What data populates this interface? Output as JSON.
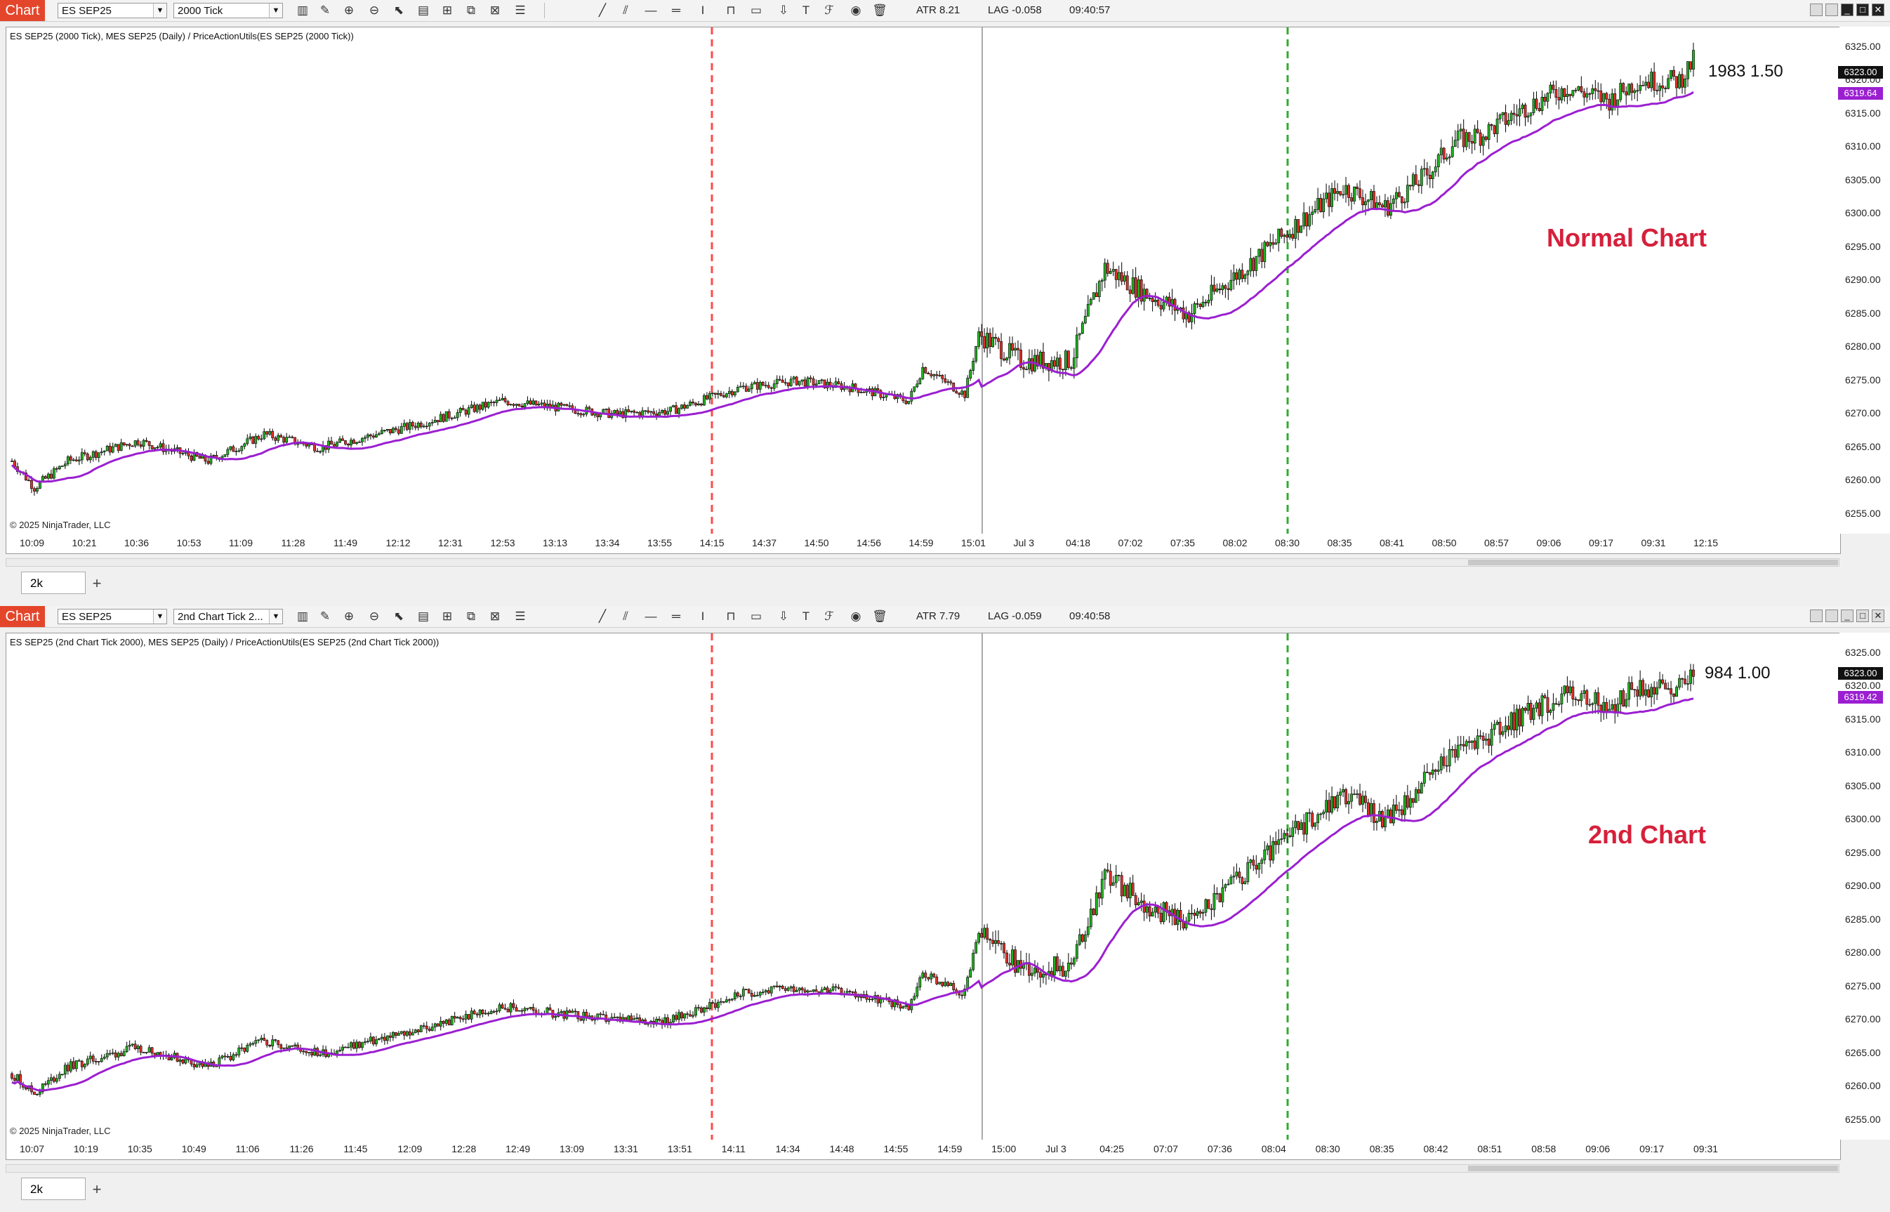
{
  "panels": [
    {
      "chart_label": "Chart",
      "instrument": "ES SEP25",
      "interval": "2000 Tick",
      "atr": "ATR 8.21",
      "lag": "LAG -0.058",
      "clock": "09:40:57",
      "header": "ES SEP25 (2000 Tick), MES SEP25 (Daily) / PriceActionUtils(ES SEP25 (2000 Tick))",
      "copyright": "© 2025 NinjaTrader, LLC",
      "big_label": "Normal Chart",
      "counter": "1983  1.50",
      "last_price": "6323.00",
      "ma_price": "6319.64",
      "time_ticks": [
        "10:09",
        "10:21",
        "10:36",
        "10:53",
        "11:09",
        "11:28",
        "11:49",
        "12:12",
        "12:31",
        "12:53",
        "13:13",
        "13:34",
        "13:55",
        "14:15",
        "14:37",
        "14:50",
        "14:56",
        "14:59",
        "15:01",
        "Jul 3",
        "04:18",
        "07:02",
        "07:35",
        "08:02",
        "08:30",
        "08:35",
        "08:41",
        "08:50",
        "08:57",
        "09:06",
        "09:17",
        "09:31",
        "12:15"
      ],
      "tab": "2k"
    },
    {
      "chart_label": "Chart",
      "instrument": "ES SEP25",
      "interval": "2nd Chart Tick 2...",
      "atr": "ATR 7.79",
      "lag": "LAG -0.059",
      "clock": "09:40:58",
      "header": "ES SEP25 (2nd Chart Tick 2000), MES SEP25 (Daily) / PriceActionUtils(ES SEP25 (2nd Chart Tick 2000))",
      "copyright": "© 2025 NinjaTrader, LLC",
      "big_label": "2nd Chart",
      "counter": "984  1.00",
      "last_price": "6323.00",
      "ma_price": "6319.42",
      "time_ticks": [
        "10:07",
        "10:19",
        "10:35",
        "10:49",
        "11:06",
        "11:26",
        "11:45",
        "12:09",
        "12:28",
        "12:49",
        "13:09",
        "13:31",
        "13:51",
        "14:11",
        "14:34",
        "14:48",
        "14:55",
        "14:59",
        "15:00",
        "Jul 3",
        "04:25",
        "07:07",
        "07:36",
        "08:04",
        "08:30",
        "08:35",
        "08:42",
        "08:51",
        "08:58",
        "09:06",
        "09:17",
        "09:31"
      ],
      "tab": "2k"
    }
  ],
  "price_ticks": [
    "6325.00",
    "6320.00",
    "6315.00",
    "6310.00",
    "6305.00",
    "6300.00",
    "6295.00",
    "6290.00",
    "6285.00",
    "6280.00",
    "6275.00",
    "6270.00",
    "6265.00",
    "6260.00",
    "6255.00"
  ],
  "tab_add": "+",
  "colors": {
    "up": "#22b022",
    "down": "#e0302a",
    "ma": "#9b1fd1",
    "red_line": "#ff4a4a",
    "green_line": "#33aa33",
    "chart_tag": "#e4462b",
    "label": "#d6203b"
  },
  "chart_data": [
    {
      "type": "candlestick",
      "title": "ES SEP25 (2000 Tick)",
      "ylim": [
        6252,
        6328
      ],
      "series": [
        {
          "name": "ES SEP25 (2000 Tick)",
          "anchors": [
            [
              0,
              6263
            ],
            [
              8,
              6259
            ],
            [
              20,
              6263
            ],
            [
              45,
              6266
            ],
            [
              70,
              6263
            ],
            [
              90,
              6267
            ],
            [
              110,
              6265
            ],
            [
              140,
              6268
            ],
            [
              175,
              6272
            ],
            [
              215,
              6270
            ],
            [
              235,
              6270.5
            ],
            [
              260,
              6274
            ],
            [
              280,
              6275
            ],
            [
              300,
              6274
            ],
            [
              320,
              6272
            ],
            [
              325,
              6277
            ],
            [
              340,
              6273
            ],
            [
              345,
              6282
            ],
            [
              360,
              6278
            ],
            [
              378,
              6278
            ],
            [
              390,
              6292
            ],
            [
              405,
              6288
            ],
            [
              420,
              6285
            ],
            [
              440,
              6292
            ],
            [
              460,
              6299
            ],
            [
              475,
              6304
            ],
            [
              490,
              6301
            ],
            [
              505,
              6306
            ],
            [
              515,
              6311
            ],
            [
              525,
              6312
            ],
            [
              540,
              6316
            ],
            [
              555,
              6319
            ],
            [
              570,
              6317
            ],
            [
              580,
              6320
            ],
            [
              595,
              6320
            ],
            [
              600,
              6323
            ]
          ]
        }
      ],
      "moving_average": {
        "name": "PriceActionUtils MA",
        "last": 6319.64
      }
    },
    {
      "type": "candlestick",
      "title": "ES SEP25 (2nd Chart Tick 2000)",
      "ylim": [
        6252,
        6328
      ],
      "series": [
        {
          "name": "ES SEP25 (2nd Chart Tick 2000)",
          "anchors": [
            [
              0,
              6262
            ],
            [
              8,
              6259
            ],
            [
              20,
              6263
            ],
            [
              45,
              6266
            ],
            [
              70,
              6263
            ],
            [
              90,
              6267
            ],
            [
              110,
              6265
            ],
            [
              140,
              6268
            ],
            [
              175,
              6272
            ],
            [
              215,
              6270
            ],
            [
              235,
              6270
            ],
            [
              260,
              6274
            ],
            [
              280,
              6275
            ],
            [
              300,
              6274
            ],
            [
              320,
              6272
            ],
            [
              325,
              6277
            ],
            [
              340,
              6274
            ],
            [
              345,
              6283
            ],
            [
              360,
              6278
            ],
            [
              378,
              6278
            ],
            [
              390,
              6292
            ],
            [
              405,
              6287
            ],
            [
              420,
              6285
            ],
            [
              440,
              6292
            ],
            [
              460,
              6299
            ],
            [
              475,
              6304
            ],
            [
              490,
              6300
            ],
            [
              505,
              6306
            ],
            [
              515,
              6311
            ],
            [
              525,
              6312
            ],
            [
              540,
              6316
            ],
            [
              555,
              6319
            ],
            [
              570,
              6317
            ],
            [
              580,
              6320
            ],
            [
              595,
              6320
            ],
            [
              600,
              6323
            ]
          ]
        }
      ],
      "moving_average": {
        "name": "PriceActionUtils MA",
        "last": 6319.42
      }
    }
  ]
}
